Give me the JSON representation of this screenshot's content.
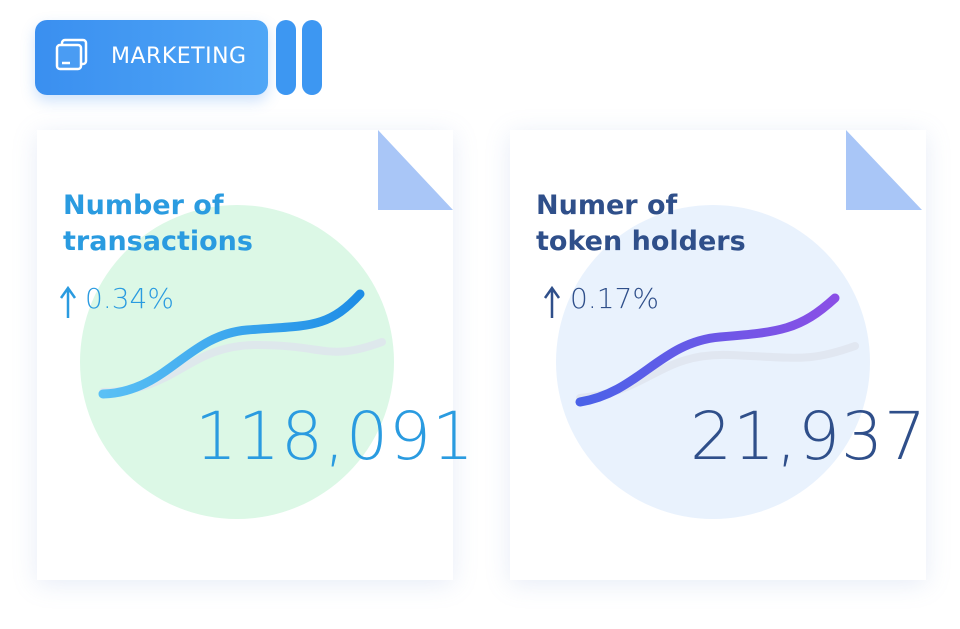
{
  "badge": {
    "label": "MARKETING"
  },
  "cards": [
    {
      "title": "Number of transactions",
      "change": "0.34%",
      "value": "118,091"
    },
    {
      "title": "Numer of token holders",
      "change": "0.17%",
      "value": "21,937"
    }
  ]
}
